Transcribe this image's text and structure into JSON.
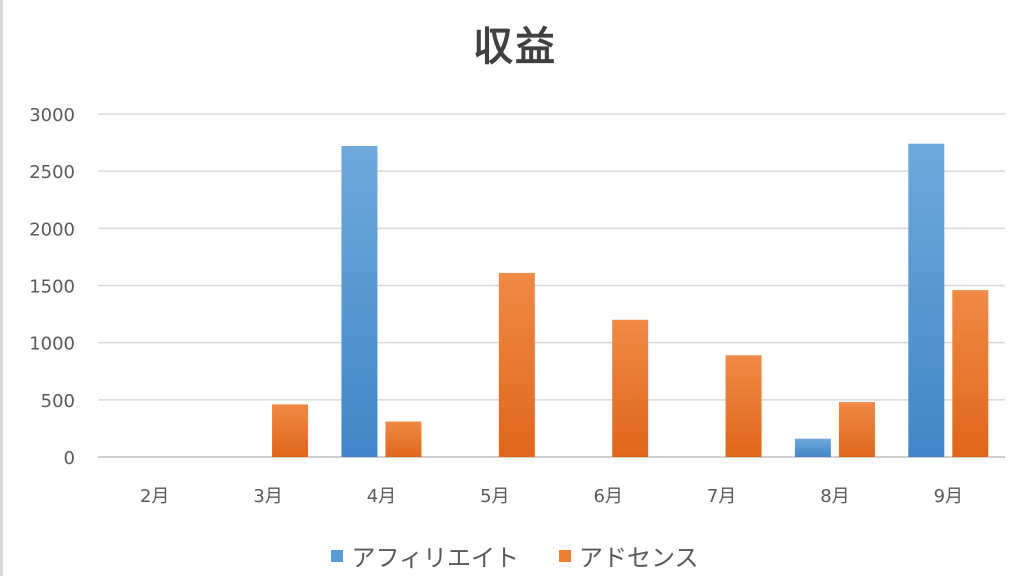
{
  "chart_data": {
    "type": "bar",
    "title": "収益",
    "categories": [
      "2月",
      "3月",
      "4月",
      "5月",
      "6月",
      "7月",
      "8月",
      "9月"
    ],
    "series": [
      {
        "name": "アフィリエイト",
        "color": "#5b9bd5",
        "values": [
          0,
          0,
          2720,
          0,
          0,
          0,
          160,
          2740
        ]
      },
      {
        "name": "アドセンス",
        "color": "#ed7d31",
        "values": [
          0,
          460,
          310,
          1610,
          1200,
          890,
          480,
          1460
        ]
      }
    ],
    "yticks": [
      "0",
      "500",
      "1000",
      "1500",
      "2000",
      "2500",
      "3000"
    ],
    "ylim": [
      0,
      3000
    ],
    "grid": true,
    "legend_position": "bottom",
    "xlabel": "",
    "ylabel": ""
  }
}
